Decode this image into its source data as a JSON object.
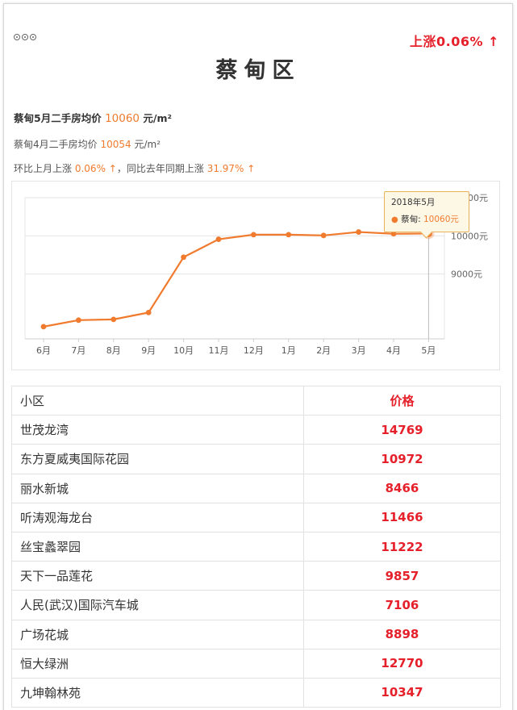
{
  "header": {
    "change_badge": "上涨0.06% ↑",
    "title": "蔡甸区"
  },
  "summary": {
    "line1_prefix": "蔡甸5月二手房均价",
    "line1_value": "10060",
    "line1_unit": "元/m²",
    "line2_prefix": "蔡甸4月二手房均价",
    "line2_value": "10054",
    "line2_unit": "元/m²",
    "line3_prefix": "环比上月上涨",
    "line3_mom": "0.06% ↑",
    "line3_mid": "，同比去年同期上涨",
    "line3_yoy": "31.97% ↑"
  },
  "tooltip": {
    "date": "2018年5月",
    "series": "蔡甸:",
    "value": "10060元"
  },
  "chart_data": {
    "type": "line",
    "categories": [
      "6月",
      "7月",
      "8月",
      "9月",
      "10月",
      "11月",
      "12月",
      "1月",
      "2月",
      "3月",
      "4月",
      "5月"
    ],
    "series": [
      {
        "name": "蔡甸",
        "values": [
          7620,
          7790,
          7810,
          7990,
          9440,
          9910,
          10030,
          10030,
          10010,
          10100,
          10054,
          10060
        ]
      }
    ],
    "y_ticks": [
      9000,
      10000,
      11000
    ],
    "y_tick_labels": [
      "9000元",
      "10000元",
      "11000元"
    ],
    "ylim": [
      7300,
      11000
    ],
    "grid": true,
    "highlight_index": 11,
    "color": "#f07b2e"
  },
  "table": {
    "headers": [
      "小区",
      "价格"
    ],
    "rows": [
      [
        "世茂龙湾",
        "14769"
      ],
      [
        "东方夏威夷国际花园",
        "10972"
      ],
      [
        "丽水新城",
        "8466"
      ],
      [
        "听涛观海龙台",
        "11466"
      ],
      [
        "丝宝蠡翠园",
        "11222"
      ],
      [
        "天下一品莲花",
        "9857"
      ],
      [
        "人民(武汉)国际汽车城",
        "7106"
      ],
      [
        "广场花城",
        "8898"
      ],
      [
        "恒大绿洲",
        "12770"
      ],
      [
        "九坤翰林苑",
        "10347"
      ]
    ]
  }
}
